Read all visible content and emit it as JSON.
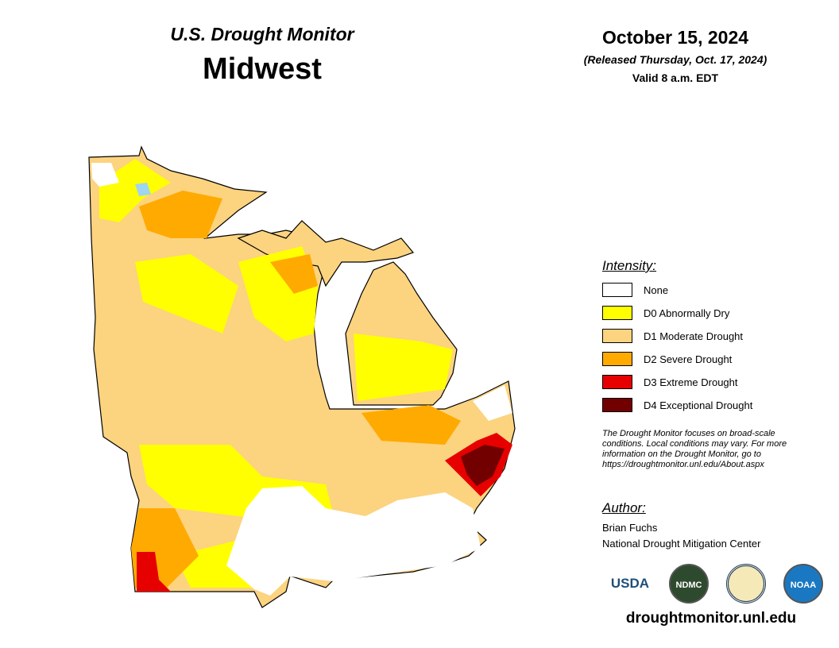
{
  "header": {
    "subtitle": "U.S. Drought Monitor",
    "title": "Midwest"
  },
  "date": {
    "main": "October 15, 2024",
    "released": "(Released Thursday, Oct. 17, 2024)",
    "valid": "Valid 8 a.m. EDT"
  },
  "legend": {
    "title": "Intensity:",
    "items": [
      {
        "label": "None",
        "color": "#ffffff"
      },
      {
        "label": "D0 Abnormally Dry",
        "color": "#ffff00"
      },
      {
        "label": "D1 Moderate Drought",
        "color": "#fcd37f"
      },
      {
        "label": "D2 Severe Drought",
        "color": "#ffaa00"
      },
      {
        "label": "D3 Extreme Drought",
        "color": "#e60000"
      },
      {
        "label": "D4 Exceptional Drought",
        "color": "#730000"
      }
    ]
  },
  "note": [
    "The Drought Monitor focuses on broad-scale",
    "conditions. Local conditions may vary. For more",
    "information on the Drought Monitor, go to",
    "https://droughtmonitor.unl.edu/About.aspx"
  ],
  "author": {
    "title": "Author:",
    "name": "Brian Fuchs",
    "org": "National Drought Mitigation Center"
  },
  "logos": [
    "USDA",
    "NDMC",
    "NOAA"
  ],
  "footer": "droughtmonitor.unl.edu"
}
